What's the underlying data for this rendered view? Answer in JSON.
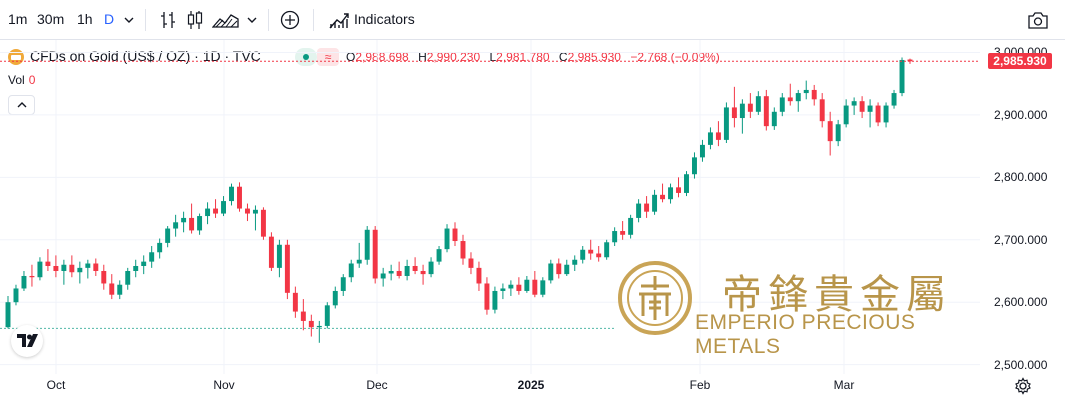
{
  "toolbar": {
    "intervals": [
      "1m",
      "30m",
      "1h",
      "D"
    ],
    "active_interval": "D",
    "indicators_label": "Indicators"
  },
  "legend": {
    "symbol": "CFDs on Gold (US$ / OZ) · 1D · TVC",
    "open_key": "O",
    "open": "2,988.698",
    "high_key": "H",
    "high": "2,990.230",
    "low_key": "L",
    "low": "2,981.780",
    "close_key": "C",
    "close": "2,985.930",
    "change": "−2.768 (−0.09%)",
    "vol_label": "Vol",
    "vol_value": "0"
  },
  "price_tag": "2,985.930",
  "watermark": {
    "chinese": "帝鋒貴金屬",
    "english": "EMPERIO PRECIOUS METALS"
  },
  "colors": {
    "up": "#089981",
    "down": "#f23645",
    "gold": "#b8954a"
  },
  "chart_data": {
    "type": "candlestick",
    "y_axis_ticks": [
      "2,500.000",
      "2,600.000",
      "2,700.000",
      "2,800.000",
      "2,900.000",
      "3,000.000"
    ],
    "ylim": [
      2485,
      3020
    ],
    "x_axis_ticks": [
      "Oct",
      "Nov",
      "Dec",
      "2025",
      "Feb",
      "Mar"
    ],
    "last_close": 2985.93,
    "candles": [
      [
        2560,
        2610,
        2558,
        2600
      ],
      [
        2600,
        2628,
        2595,
        2622
      ],
      [
        2622,
        2650,
        2618,
        2642
      ],
      [
        2642,
        2660,
        2625,
        2640
      ],
      [
        2640,
        2672,
        2635,
        2665
      ],
      [
        2665,
        2685,
        2650,
        2658
      ],
      [
        2658,
        2675,
        2640,
        2650
      ],
      [
        2650,
        2668,
        2628,
        2660
      ],
      [
        2660,
        2675,
        2640,
        2648
      ],
      [
        2648,
        2665,
        2630,
        2655
      ],
      [
        2655,
        2668,
        2638,
        2662
      ],
      [
        2662,
        2670,
        2642,
        2650
      ],
      [
        2650,
        2660,
        2620,
        2630
      ],
      [
        2630,
        2645,
        2605,
        2612
      ],
      [
        2612,
        2635,
        2605,
        2628
      ],
      [
        2628,
        2655,
        2620,
        2650
      ],
      [
        2650,
        2668,
        2640,
        2658
      ],
      [
        2658,
        2675,
        2645,
        2665
      ],
      [
        2665,
        2690,
        2655,
        2680
      ],
      [
        2680,
        2702,
        2670,
        2695
      ],
      [
        2695,
        2722,
        2688,
        2718
      ],
      [
        2718,
        2740,
        2705,
        2728
      ],
      [
        2728,
        2745,
        2712,
        2735
      ],
      [
        2735,
        2758,
        2710,
        2715
      ],
      [
        2715,
        2742,
        2708,
        2738
      ],
      [
        2738,
        2760,
        2725,
        2750
      ],
      [
        2750,
        2765,
        2735,
        2742
      ],
      [
        2742,
        2770,
        2738,
        2762
      ],
      [
        2762,
        2790,
        2755,
        2785
      ],
      [
        2785,
        2792,
        2745,
        2750
      ],
      [
        2750,
        2758,
        2730,
        2742
      ],
      [
        2742,
        2755,
        2715,
        2748
      ],
      [
        2748,
        2752,
        2700,
        2705
      ],
      [
        2705,
        2712,
        2650,
        2655
      ],
      [
        2655,
        2700,
        2640,
        2692
      ],
      [
        2692,
        2700,
        2605,
        2615
      ],
      [
        2615,
        2625,
        2575,
        2585
      ],
      [
        2585,
        2605,
        2555,
        2570
      ],
      [
        2570,
        2580,
        2545,
        2560
      ],
      [
        2560,
        2570,
        2535,
        2562
      ],
      [
        2562,
        2600,
        2558,
        2595
      ],
      [
        2595,
        2625,
        2590,
        2618
      ],
      [
        2618,
        2645,
        2610,
        2640
      ],
      [
        2640,
        2668,
        2632,
        2662
      ],
      [
        2662,
        2695,
        2655,
        2668
      ],
      [
        2668,
        2722,
        2660,
        2716
      ],
      [
        2716,
        2722,
        2630,
        2638
      ],
      [
        2638,
        2655,
        2625,
        2646
      ],
      [
        2646,
        2660,
        2635,
        2650
      ],
      [
        2650,
        2665,
        2638,
        2642
      ],
      [
        2642,
        2668,
        2635,
        2658
      ],
      [
        2658,
        2672,
        2645,
        2650
      ],
      [
        2650,
        2660,
        2628,
        2645
      ],
      [
        2645,
        2672,
        2640,
        2665
      ],
      [
        2665,
        2690,
        2660,
        2685
      ],
      [
        2685,
        2725,
        2680,
        2718
      ],
      [
        2718,
        2728,
        2690,
        2698
      ],
      [
        2698,
        2708,
        2660,
        2670
      ],
      [
        2670,
        2680,
        2645,
        2655
      ],
      [
        2655,
        2665,
        2618,
        2630
      ],
      [
        2630,
        2640,
        2580,
        2588
      ],
      [
        2588,
        2625,
        2582,
        2618
      ],
      [
        2618,
        2630,
        2605,
        2622
      ],
      [
        2622,
        2635,
        2610,
        2628
      ],
      [
        2628,
        2640,
        2612,
        2618
      ],
      [
        2618,
        2642,
        2615,
        2636
      ],
      [
        2636,
        2650,
        2608,
        2612
      ],
      [
        2612,
        2640,
        2608,
        2635
      ],
      [
        2635,
        2668,
        2630,
        2662
      ],
      [
        2662,
        2670,
        2638,
        2645
      ],
      [
        2645,
        2668,
        2642,
        2660
      ],
      [
        2660,
        2675,
        2650,
        2668
      ],
      [
        2668,
        2690,
        2662,
        2684
      ],
      [
        2684,
        2700,
        2668,
        2678
      ],
      [
        2678,
        2690,
        2665,
        2672
      ],
      [
        2672,
        2700,
        2668,
        2696
      ],
      [
        2696,
        2720,
        2690,
        2714
      ],
      [
        2714,
        2730,
        2700,
        2708
      ],
      [
        2708,
        2740,
        2702,
        2735
      ],
      [
        2735,
        2765,
        2728,
        2758
      ],
      [
        2758,
        2770,
        2735,
        2745
      ],
      [
        2745,
        2780,
        2740,
        2772
      ],
      [
        2772,
        2790,
        2760,
        2765
      ],
      [
        2765,
        2790,
        2758,
        2784
      ],
      [
        2784,
        2800,
        2768,
        2775
      ],
      [
        2775,
        2810,
        2770,
        2805
      ],
      [
        2805,
        2840,
        2798,
        2832
      ],
      [
        2832,
        2860,
        2825,
        2852
      ],
      [
        2852,
        2880,
        2845,
        2872
      ],
      [
        2872,
        2890,
        2850,
        2860
      ],
      [
        2860,
        2920,
        2855,
        2912
      ],
      [
        2912,
        2945,
        2880,
        2895
      ],
      [
        2895,
        2925,
        2870,
        2918
      ],
      [
        2918,
        2935,
        2895,
        2905
      ],
      [
        2905,
        2938,
        2900,
        2930
      ],
      [
        2930,
        2940,
        2875,
        2882
      ],
      [
        2882,
        2912,
        2876,
        2905
      ],
      [
        2905,
        2935,
        2898,
        2928
      ],
      [
        2928,
        2950,
        2915,
        2922
      ],
      [
        2922,
        2940,
        2905,
        2935
      ],
      [
        2935,
        2955,
        2925,
        2940
      ],
      [
        2940,
        2948,
        2915,
        2925
      ],
      [
        2925,
        2935,
        2880,
        2890
      ],
      [
        2890,
        2905,
        2835,
        2858
      ],
      [
        2858,
        2892,
        2850,
        2885
      ],
      [
        2885,
        2925,
        2880,
        2915
      ],
      [
        2915,
        2928,
        2900,
        2922
      ],
      [
        2922,
        2930,
        2895,
        2905
      ],
      [
        2905,
        2925,
        2880,
        2915
      ],
      [
        2915,
        2920,
        2882,
        2888
      ],
      [
        2888,
        2920,
        2880,
        2915
      ],
      [
        2915,
        2940,
        2910,
        2935
      ],
      [
        2935,
        2992,
        2930,
        2988
      ],
      [
        2988.698,
        2990.23,
        2981.78,
        2985.93
      ]
    ]
  }
}
